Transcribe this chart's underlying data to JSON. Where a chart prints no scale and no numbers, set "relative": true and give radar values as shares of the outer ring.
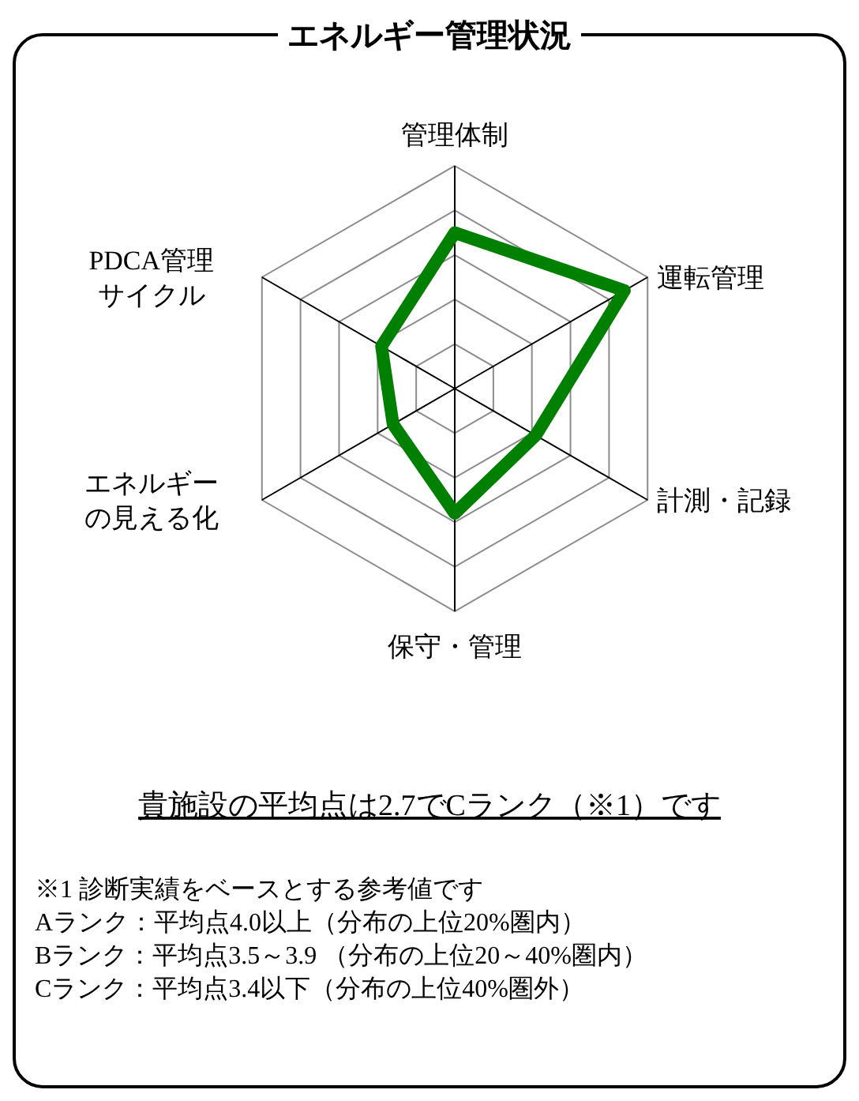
{
  "chart_data": {
    "type": "radar",
    "title": "エネルギー管理状況",
    "relative": true,
    "categories": [
      "管理体制",
      "運転管理",
      "計測・記録",
      "保守・管理",
      "エネルギーの見える化",
      "PDCA管理サイクル"
    ],
    "series": [
      {
        "color": "#008000",
        "values": [
          0.7,
          0.88,
          0.42,
          0.56,
          0.32,
          0.38
        ]
      }
    ],
    "grid": true,
    "marker": "none",
    "line_style": "solid",
    "annotations": [
      "貴施設の平均点は2.7でCランク（※1）です",
      "※1 診断実績をベースとする参考値です",
      "Aランク：平均点4.0以上（分布の上位20%圏内）",
      "Bランク：平均点3.5～3.9 （分布の上位20～40%圏内）",
      "Cランク：平均点3.4以下（分布の上位40%圏外）"
    ]
  }
}
